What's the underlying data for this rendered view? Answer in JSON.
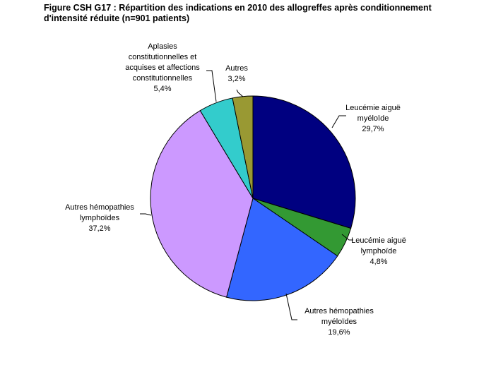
{
  "chart_data": {
    "type": "pie",
    "title_lines": [
      "Figure CSH G17 : Répartition des indications en 2010 des allogreffes après conditionnement",
      "d'intensité réduite (n=901 patients)"
    ],
    "slices": [
      {
        "label_lines": [
          "Leucémie aiguë",
          "myéloïde",
          "29,7%"
        ],
        "value": 29.7,
        "color": "#000080"
      },
      {
        "label_lines": [
          "Leucémie aiguë",
          "lymphoïde",
          "4,8%"
        ],
        "value": 4.8,
        "color": "#339933"
      },
      {
        "label_lines": [
          "Autres hémopathies",
          "myéloïdes",
          "19,6%"
        ],
        "value": 19.6,
        "color": "#3366FF"
      },
      {
        "label_lines": [
          "Autres hémopathies",
          "lymphoïdes",
          "37,2%"
        ],
        "value": 37.2,
        "color": "#CC99FF"
      },
      {
        "label_lines": [
          "Aplasies",
          "constitutionnelles et",
          "acquises et affections",
          "constitutionnelles",
          "5,4%"
        ],
        "value": 5.4,
        "color": "#33CCCC"
      },
      {
        "label_lines": [
          "Autres",
          "3,2%"
        ],
        "value": 3.2,
        "color": "#999933"
      }
    ],
    "start": "12 o'clock",
    "direction": "clockwise",
    "legend": "none"
  }
}
